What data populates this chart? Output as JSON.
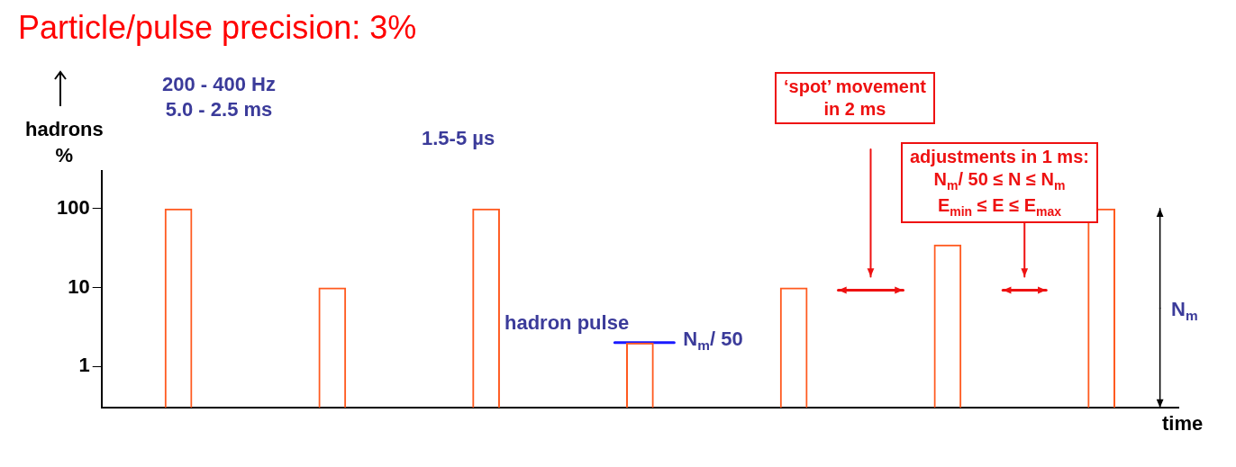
{
  "chart_data": {
    "type": "bar",
    "title": "Particle/pulse precision: 3%",
    "xlabel": "time",
    "ylabel": "hadrons %",
    "categories": [
      null,
      null,
      null,
      null,
      null,
      null,
      null
    ],
    "values": [
      100,
      10,
      100,
      2,
      10,
      35,
      100
    ],
    "color": "#ff5a1f",
    "log": true,
    "ylim": [
      0.3,
      300
    ],
    "yticks": [
      1,
      10,
      100
    ],
    "tick_labels": "y",
    "grid": false,
    "legend": false,
    "ref_lines": [
      {
        "axis": "y",
        "value": 2,
        "label": "N$_{m}$/ 50",
        "color": "#1a1aff"
      }
    ],
    "annotations": [
      "200 - 400 Hz\n5.0 - 2.5 ms",
      "1.5-5 µs",
      "hadron pulse",
      "‘spot’ movement\nin 2 ms",
      "adjustments in 1 ms:\nN$_{m}$/ 50 ≤ N ≤ N$_{m}$\nE$_{min}$ ≤ E ≤ E$_{max}$",
      "N$_{m}$"
    ]
  }
}
